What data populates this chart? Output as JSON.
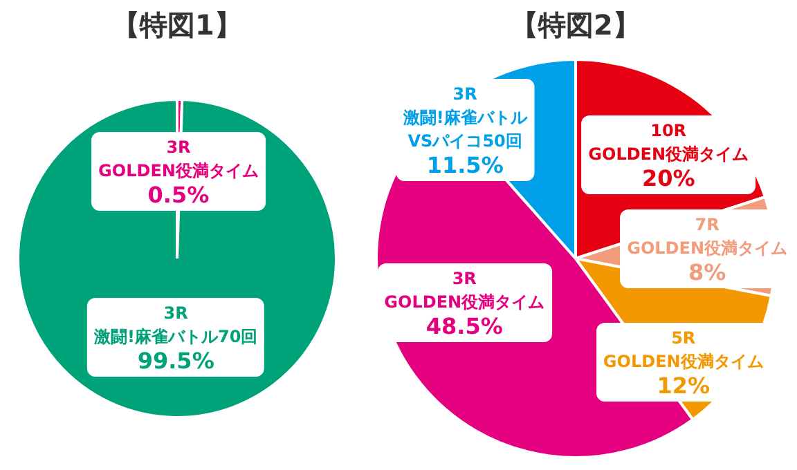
{
  "chart_data": [
    {
      "type": "pie",
      "title": "【特図1】",
      "categories": [
        "3R\nGOLDEN役満タイム",
        "3R\n激闘!麻雀バトル70回"
      ],
      "values": [
        0.5,
        99.5
      ],
      "colors": [
        "#e4007f",
        "#00a27a"
      ],
      "value_labels": [
        "0.5%",
        "99.5%"
      ],
      "legend": false
    },
    {
      "type": "pie",
      "title": "【特図2】",
      "categories": [
        "10R\nGOLDEN役満タイム",
        "7R\nGOLDEN役満タイム",
        "5R\nGOLDEN役満タイム",
        "3R\nGOLDEN役満タイム",
        "3R\n激闘!麻雀バトル\nVSパイコ50回"
      ],
      "values": [
        20,
        8,
        12,
        48.5,
        11.5
      ],
      "colors": [
        "#e60012",
        "#f19c7b",
        "#f39800",
        "#e4007f",
        "#00a0e9"
      ],
      "value_labels": [
        "20%",
        "8%",
        "12%",
        "48.5%",
        "11.5%"
      ],
      "legend": false
    }
  ]
}
